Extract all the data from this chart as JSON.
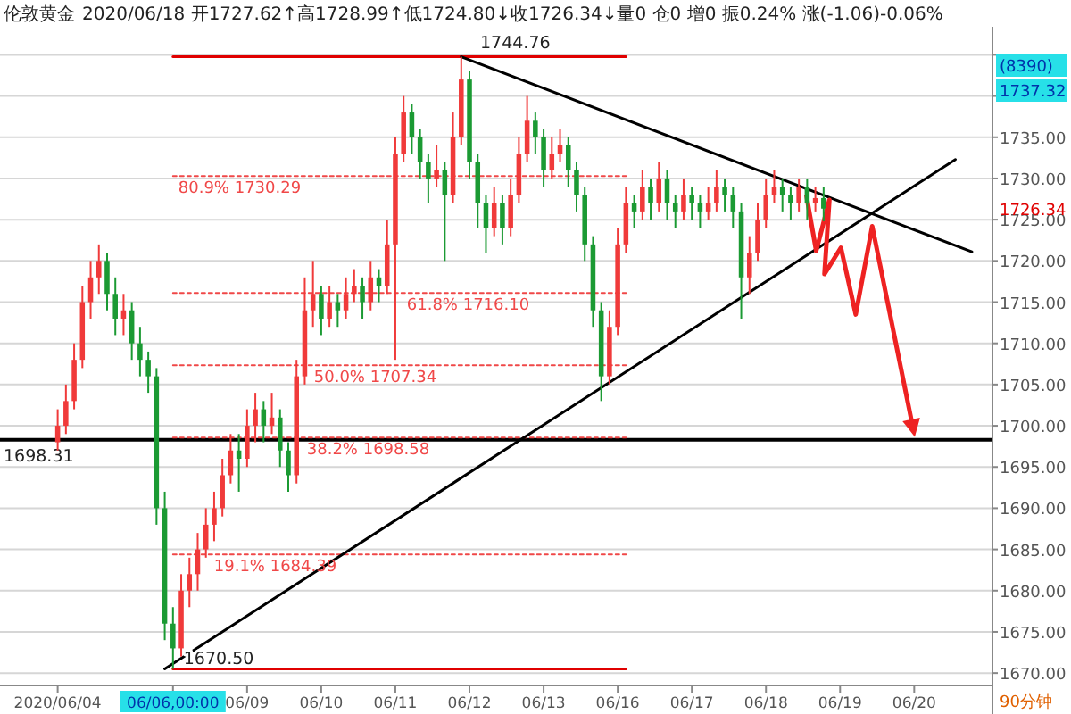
{
  "chart_data": {
    "type": "candlestick",
    "title": "伦敦黄金",
    "subtitle": "2020/06/18 开1727.62↑高1728.99↑低1724.80↓收1726.34↓量0 仓0 增0 振0.24% 涨(-1.06)-0.06%",
    "categories": [
      "2020/06/04",
      null,
      null,
      null,
      null,
      null,
      null,
      null,
      null,
      null,
      null,
      null,
      null,
      null,
      "06/06,00:00",
      null,
      null,
      null,
      null,
      null,
      null,
      null,
      null,
      "06/09",
      null,
      null,
      null,
      null,
      null,
      null,
      null,
      null,
      "06/10",
      null,
      null,
      null,
      null,
      null,
      null,
      null,
      null,
      "06/11",
      null,
      null,
      null,
      null,
      null,
      null,
      null,
      null,
      "06/12",
      null,
      null,
      null,
      null,
      null,
      null,
      null,
      null,
      "06/13",
      null,
      null,
      null,
      null,
      null,
      null,
      null,
      null,
      "06/16",
      null,
      null,
      null,
      null,
      null,
      null,
      null,
      null,
      "06/17",
      null,
      null,
      null,
      null,
      null,
      null,
      null,
      null,
      "06/18",
      null,
      null,
      null,
      null,
      null,
      null,
      null,
      null,
      "06/19",
      null,
      null,
      null,
      null,
      null,
      null,
      null,
      null,
      "06/20",
      null,
      null,
      null,
      null,
      null,
      null,
      null,
      null,
      null
    ],
    "ylim": [
      1668.5,
      1748.4
    ],
    "yticks": [
      {
        "value": 1670,
        "label": "1670.00"
      },
      {
        "value": 1675,
        "label": "1675.00"
      },
      {
        "value": 1680,
        "label": "1680.00"
      },
      {
        "value": 1685,
        "label": "1685.00"
      },
      {
        "value": 1690,
        "label": "1690.00"
      },
      {
        "value": 1695,
        "label": "1695.00"
      },
      {
        "value": 1700,
        "label": "1700.00"
      },
      {
        "value": 1705,
        "label": "1705.00"
      },
      {
        "value": 1710,
        "label": "1710.00"
      },
      {
        "value": 1715,
        "label": "1715.00"
      },
      {
        "value": 1720,
        "label": "1720.00"
      },
      {
        "value": 1725,
        "label": "1725.00"
      },
      {
        "value": 1730,
        "label": "1730.00"
      },
      {
        "value": 1735,
        "label": "1735.00"
      },
      {
        "value": 1740,
        "label": null
      },
      {
        "value": 1745,
        "label": null
      }
    ],
    "grid": "y",
    "ohlc": [
      [
        1698,
        1702,
        1697,
        1700
      ],
      [
        1700,
        1705,
        1699,
        1703
      ],
      [
        1703,
        1710,
        1702,
        1708
      ],
      [
        1708,
        1717,
        1707,
        1715
      ],
      [
        1715,
        1720,
        1713,
        1718
      ],
      [
        1718,
        1722,
        1716,
        1720
      ],
      [
        1720,
        1721,
        1714,
        1716
      ],
      [
        1716,
        1718,
        1711,
        1713
      ],
      [
        1713,
        1716,
        1711,
        1714
      ],
      [
        1714,
        1715,
        1708,
        1710
      ],
      [
        1710,
        1712,
        1706,
        1708
      ],
      [
        1708,
        1709,
        1704,
        1706
      ],
      [
        1706,
        1707,
        1688,
        1690
      ],
      [
        1690,
        1692,
        1674,
        1676
      ],
      [
        1676,
        1678,
        1670.5,
        1673
      ],
      [
        1673,
        1682,
        1672,
        1680
      ],
      [
        1680,
        1684,
        1678,
        1682
      ],
      [
        1682,
        1687,
        1680,
        1685
      ],
      [
        1685,
        1690,
        1684,
        1688
      ],
      [
        1688,
        1692,
        1686,
        1690
      ],
      [
        1690,
        1696,
        1689,
        1694
      ],
      [
        1694,
        1699,
        1693,
        1697
      ],
      [
        1697,
        1699,
        1692,
        1696
      ],
      [
        1696,
        1702,
        1695,
        1700
      ],
      [
        1700,
        1704,
        1698,
        1702
      ],
      [
        1702,
        1703,
        1698,
        1700
      ],
      [
        1700,
        1704,
        1699,
        1701
      ],
      [
        1701,
        1702,
        1695,
        1697
      ],
      [
        1697,
        1698,
        1692,
        1694
      ],
      [
        1694,
        1708,
        1693,
        1706
      ],
      [
        1706,
        1718,
        1705,
        1714
      ],
      [
        1714,
        1720,
        1712,
        1716
      ],
      [
        1716,
        1717,
        1711,
        1713
      ],
      [
        1713,
        1717,
        1712,
        1715
      ],
      [
        1715,
        1716,
        1712,
        1714
      ],
      [
        1714,
        1718,
        1713,
        1716
      ],
      [
        1716,
        1719,
        1715,
        1717
      ],
      [
        1717,
        1718,
        1713,
        1715
      ],
      [
        1715,
        1720,
        1714,
        1718
      ],
      [
        1718,
        1719,
        1715,
        1717
      ],
      [
        1717,
        1725,
        1716,
        1722
      ],
      [
        1722,
        1735,
        1708,
        1733
      ],
      [
        1733,
        1740,
        1732,
        1738
      ],
      [
        1738,
        1739,
        1733,
        1735
      ],
      [
        1735,
        1736,
        1730,
        1732
      ],
      [
        1732,
        1733,
        1727,
        1730
      ],
      [
        1730,
        1734,
        1729,
        1731
      ],
      [
        1731,
        1732,
        1720,
        1728
      ],
      [
        1728,
        1738,
        1727,
        1735
      ],
      [
        1735,
        1744.76,
        1734,
        1742
      ],
      [
        1742,
        1743,
        1730,
        1732
      ],
      [
        1732,
        1733,
        1724,
        1727
      ],
      [
        1727,
        1728,
        1721,
        1724
      ],
      [
        1724,
        1729,
        1723,
        1727
      ],
      [
        1727,
        1728,
        1722,
        1724
      ],
      [
        1724,
        1730,
        1723,
        1728
      ],
      [
        1728,
        1735,
        1727,
        1733
      ],
      [
        1733,
        1740,
        1732,
        1737
      ],
      [
        1737,
        1738,
        1733,
        1735
      ],
      [
        1735,
        1736,
        1729,
        1731
      ],
      [
        1731,
        1735,
        1730,
        1733
      ],
      [
        1733,
        1736,
        1732,
        1734
      ],
      [
        1734,
        1735,
        1729,
        1731
      ],
      [
        1731,
        1732,
        1726,
        1728
      ],
      [
        1728,
        1729,
        1720,
        1722
      ],
      [
        1722,
        1723,
        1712,
        1714
      ],
      [
        1714,
        1715,
        1703,
        1706
      ],
      [
        1706,
        1714,
        1705,
        1712
      ],
      [
        1712,
        1724,
        1711,
        1722
      ],
      [
        1722,
        1729,
        1721,
        1727
      ],
      [
        1727,
        1728,
        1724,
        1726
      ],
      [
        1726,
        1731,
        1725,
        1729
      ],
      [
        1729,
        1730,
        1725,
        1727
      ],
      [
        1727,
        1732,
        1726,
        1730
      ],
      [
        1730,
        1731,
        1725,
        1727
      ],
      [
        1727,
        1728,
        1724,
        1726
      ],
      [
        1726,
        1730,
        1725,
        1728
      ],
      [
        1728,
        1729,
        1725,
        1727
      ],
      [
        1727,
        1728,
        1724,
        1726
      ],
      [
        1726,
        1729,
        1725,
        1727
      ],
      [
        1727,
        1731,
        1726,
        1729
      ],
      [
        1729,
        1730,
        1726,
        1728
      ],
      [
        1728,
        1729,
        1724,
        1726
      ],
      [
        1726,
        1727,
        1713,
        1718
      ],
      [
        1718,
        1723,
        1716,
        1721
      ],
      [
        1721,
        1727,
        1720,
        1725
      ],
      [
        1725,
        1730,
        1724,
        1728
      ],
      [
        1728,
        1731,
        1727,
        1729
      ],
      [
        1729,
        1730,
        1726,
        1728
      ],
      [
        1728,
        1729,
        1725,
        1727
      ],
      [
        1727,
        1730,
        1726,
        1729
      ],
      [
        1729,
        1730,
        1725,
        1727
      ],
      [
        1727,
        1729,
        1726,
        1727.62
      ],
      [
        1727.62,
        1728.99,
        1724.8,
        1726.34
      ],
      null,
      null,
      null,
      null,
      null,
      null,
      null,
      null,
      null,
      null,
      null,
      null,
      null,
      null,
      null,
      null,
      null,
      null,
      null,
      null
    ],
    "series": [
      {
        "type": "line",
        "color": "#e00000",
        "line_style": "solid",
        "values": [
          null,
          null,
          null,
          null,
          null,
          null,
          null,
          null,
          null,
          null,
          null,
          null,
          null,
          null,
          1744.76,
          null,
          null,
          null,
          null,
          null,
          null,
          null,
          null,
          null,
          null,
          null,
          null,
          null,
          null,
          null,
          null,
          null,
          null,
          null,
          null,
          null,
          null,
          null,
          null,
          null,
          null,
          null,
          null,
          null,
          null,
          null,
          null,
          null,
          null,
          null,
          null,
          null,
          null,
          null,
          null,
          null,
          null,
          null,
          null,
          null,
          null,
          null,
          null,
          null,
          null,
          null,
          null,
          null,
          null,
          1744.76,
          null,
          null,
          null,
          null,
          null,
          null,
          null,
          null,
          null,
          null,
          null,
          null,
          null,
          null,
          null,
          null,
          null,
          null,
          null,
          null,
          null,
          null,
          null,
          null,
          null,
          null,
          null,
          null,
          null,
          null,
          null,
          null,
          null,
          null,
          null,
          null,
          null,
          null,
          null,
          null,
          null,
          null,
          null,
          null
        ]
      },
      {
        "type": "line",
        "color": "#e00000",
        "line_style": "solid",
        "values": [
          null,
          null,
          null,
          null,
          null,
          null,
          null,
          null,
          null,
          null,
          null,
          null,
          null,
          null,
          1670.5,
          null,
          null,
          null,
          null,
          null,
          null,
          null,
          null,
          null,
          null,
          null,
          null,
          null,
          null,
          null,
          null,
          null,
          null,
          null,
          null,
          null,
          null,
          null,
          null,
          null,
          null,
          null,
          null,
          null,
          null,
          null,
          null,
          null,
          null,
          null,
          null,
          null,
          null,
          null,
          null,
          null,
          null,
          null,
          null,
          null,
          null,
          null,
          null,
          null,
          null,
          null,
          null,
          null,
          null,
          1670.5,
          null,
          null,
          null,
          null,
          null,
          null,
          null,
          null,
          null,
          null,
          null,
          null,
          null,
          null,
          null,
          null,
          null,
          null,
          null,
          null,
          null,
          null,
          null,
          null,
          null,
          null,
          null,
          null,
          null,
          null,
          null,
          null,
          null,
          null,
          null,
          null,
          null,
          null,
          null,
          null,
          null,
          null,
          null,
          null
        ]
      },
      {
        "type": "line",
        "name": "80.9% 1730.29",
        "color": "#f04848",
        "line_style": "dotted",
        "values": [
          null,
          null,
          null,
          null,
          null,
          null,
          null,
          null,
          null,
          null,
          null,
          null,
          null,
          null,
          1730.29,
          null,
          null,
          null,
          null,
          null,
          null,
          null,
          null,
          null,
          null,
          null,
          null,
          null,
          null,
          null,
          null,
          null,
          null,
          null,
          null,
          null,
          null,
          null,
          null,
          null,
          null,
          null,
          null,
          null,
          null,
          null,
          null,
          null,
          null,
          null,
          null,
          null,
          null,
          null,
          null,
          null,
          null,
          null,
          null,
          null,
          null,
          null,
          null,
          null,
          null,
          null,
          null,
          null,
          null,
          1730.29,
          null,
          null,
          null,
          null,
          null,
          null,
          null,
          null,
          null,
          null,
          null,
          null,
          null,
          null,
          null,
          null,
          null,
          null,
          null,
          null,
          null,
          null,
          null,
          null,
          null,
          null,
          null,
          null,
          null,
          null,
          null,
          null,
          null,
          null,
          null,
          null,
          null,
          null,
          null,
          null,
          null,
          null,
          null,
          null
        ]
      },
      {
        "type": "line",
        "name": "61.8% 1716.10",
        "color": "#f04848",
        "line_style": "dotted",
        "values": [
          null,
          null,
          null,
          null,
          null,
          null,
          null,
          null,
          null,
          null,
          null,
          null,
          null,
          null,
          1716.1,
          null,
          null,
          null,
          null,
          null,
          null,
          null,
          null,
          null,
          null,
          null,
          null,
          null,
          null,
          null,
          null,
          null,
          null,
          null,
          null,
          null,
          null,
          null,
          null,
          null,
          null,
          null,
          null,
          null,
          null,
          null,
          null,
          null,
          null,
          null,
          null,
          null,
          null,
          null,
          null,
          null,
          null,
          null,
          null,
          null,
          null,
          null,
          null,
          null,
          null,
          null,
          null,
          null,
          null,
          1716.1,
          null,
          null,
          null,
          null,
          null,
          null,
          null,
          null,
          null,
          null,
          null,
          null,
          null,
          null,
          null,
          null,
          null,
          null,
          null,
          null,
          null,
          null,
          null,
          null,
          null,
          null,
          null,
          null,
          null,
          null,
          null,
          null,
          null,
          null,
          null,
          null,
          null,
          null,
          null,
          null,
          null,
          null,
          null,
          null
        ]
      },
      {
        "type": "line",
        "name": "50.0% 1707.34",
        "color": "#f04848",
        "line_style": "dotted",
        "values": [
          null,
          null,
          null,
          null,
          null,
          null,
          null,
          null,
          null,
          null,
          null,
          null,
          null,
          null,
          1707.34,
          null,
          null,
          null,
          null,
          null,
          null,
          null,
          null,
          null,
          null,
          null,
          null,
          null,
          null,
          null,
          null,
          null,
          null,
          null,
          null,
          null,
          null,
          null,
          null,
          null,
          null,
          null,
          null,
          null,
          null,
          null,
          null,
          null,
          null,
          null,
          null,
          null,
          null,
          null,
          null,
          null,
          null,
          null,
          null,
          null,
          null,
          null,
          null,
          null,
          null,
          null,
          null,
          null,
          null,
          1707.34,
          null,
          null,
          null,
          null,
          null,
          null,
          null,
          null,
          null,
          null,
          null,
          null,
          null,
          null,
          null,
          null,
          null,
          null,
          null,
          null,
          null,
          null,
          null,
          null,
          null,
          null,
          null,
          null,
          null,
          null,
          null,
          null,
          null,
          null,
          null,
          null,
          null,
          null,
          null,
          null,
          null,
          null,
          null,
          null
        ]
      },
      {
        "type": "line",
        "name": "38.2% 1698.58",
        "color": "#f04848",
        "line_style": "dotted",
        "values": [
          null,
          null,
          null,
          null,
          null,
          null,
          null,
          null,
          null,
          null,
          null,
          null,
          null,
          null,
          1698.58,
          null,
          null,
          null,
          null,
          null,
          null,
          null,
          null,
          null,
          null,
          null,
          null,
          null,
          null,
          null,
          null,
          null,
          null,
          null,
          null,
          null,
          null,
          null,
          null,
          null,
          null,
          null,
          null,
          null,
          null,
          null,
          null,
          null,
          null,
          null,
          null,
          null,
          null,
          null,
          null,
          null,
          null,
          null,
          null,
          null,
          null,
          null,
          null,
          null,
          null,
          null,
          null,
          null,
          null,
          1698.58,
          null,
          null,
          null,
          null,
          null,
          null,
          null,
          null,
          null,
          null,
          null,
          null,
          null,
          null,
          null,
          null,
          null,
          null,
          null,
          null,
          null,
          null,
          null,
          null,
          null,
          null,
          null,
          null,
          null,
          null,
          null,
          null,
          null,
          null,
          null,
          null,
          null,
          null,
          null,
          null,
          null,
          null,
          null,
          null
        ]
      },
      {
        "type": "line",
        "name": "19.1% 1684.39",
        "color": "#f04848",
        "line_style": "dotted",
        "values": [
          null,
          null,
          null,
          null,
          null,
          null,
          null,
          null,
          null,
          null,
          null,
          null,
          null,
          null,
          1684.39,
          null,
          null,
          null,
          null,
          null,
          null,
          null,
          null,
          null,
          null,
          null,
          null,
          null,
          null,
          null,
          null,
          null,
          null,
          null,
          null,
          null,
          null,
          null,
          null,
          null,
          null,
          null,
          null,
          null,
          null,
          null,
          null,
          null,
          null,
          null,
          null,
          null,
          null,
          null,
          null,
          null,
          null,
          null,
          null,
          null,
          null,
          null,
          null,
          null,
          null,
          null,
          null,
          null,
          null,
          1684.39,
          null,
          null,
          null,
          null,
          null,
          null,
          null,
          null,
          null,
          null,
          null,
          null,
          null,
          null,
          null,
          null,
          null,
          null,
          null,
          null,
          null,
          null,
          null,
          null,
          null,
          null,
          null,
          null,
          null,
          null,
          null,
          null,
          null,
          null,
          null,
          null,
          null,
          null,
          null,
          null,
          null,
          null,
          null,
          null
        ]
      },
      {
        "type": "line",
        "color": "#000000",
        "line_style": "solid",
        "values": [
          null,
          null,
          null,
          null,
          null,
          null,
          null,
          null,
          null,
          null,
          null,
          null,
          null,
          null,
          null,
          null,
          null,
          null,
          null,
          null,
          null,
          null,
          null,
          null,
          null,
          null,
          null,
          null,
          null,
          null,
          null,
          null,
          null,
          null,
          null,
          null,
          null,
          null,
          null,
          null,
          null,
          null,
          null,
          null,
          null,
          null,
          null,
          null,
          null,
          1744.76,
          null,
          null,
          null,
          null,
          null,
          null,
          null,
          null,
          null,
          null,
          null,
          null,
          null,
          null,
          null,
          null,
          null,
          null,
          null,
          null,
          null,
          null,
          null,
          null,
          null,
          null,
          null,
          null,
          null,
          null,
          null,
          null,
          null,
          null,
          null,
          null,
          null,
          null,
          null,
          null,
          null,
          null,
          null,
          null,
          null,
          null,
          null,
          null,
          null,
          null,
          null,
          null,
          null,
          null,
          null,
          null,
          null,
          null,
          null,
          null,
          null,
          1721.1,
          null,
          null
        ]
      },
      {
        "type": "line",
        "color": "#000000",
        "line_style": "solid",
        "values": [
          null,
          null,
          null,
          null,
          null,
          null,
          null,
          null,
          null,
          null,
          null,
          null,
          null,
          1670.5,
          null,
          null,
          null,
          null,
          null,
          null,
          null,
          null,
          null,
          null,
          null,
          null,
          null,
          null,
          null,
          null,
          null,
          null,
          null,
          null,
          null,
          null,
          null,
          null,
          null,
          null,
          null,
          null,
          null,
          null,
          null,
          null,
          null,
          null,
          null,
          null,
          null,
          null,
          null,
          null,
          null,
          null,
          null,
          null,
          null,
          null,
          null,
          null,
          null,
          null,
          null,
          null,
          null,
          null,
          null,
          null,
          null,
          null,
          null,
          null,
          null,
          null,
          null,
          null,
          null,
          null,
          null,
          null,
          null,
          null,
          null,
          null,
          null,
          null,
          null,
          null,
          null,
          null,
          null,
          null,
          null,
          null,
          null,
          null,
          null,
          null,
          null,
          null,
          null,
          null,
          null,
          null,
          null,
          null,
          null,
          1732.3,
          null,
          null,
          null,
          null
        ]
      }
    ],
    "ref_lines": [
      {
        "axis": "y",
        "value": 1698.31,
        "label": "1698.31",
        "color": "#000000",
        "line_style": "solid"
      }
    ],
    "annotations": [
      "(8390)",
      "1737.32",
      "1726.34",
      "90分钟",
      {
        "text": "1744.76",
        "x": "06/12",
        "y": 1744.76
      },
      {
        "text": "1670.50",
        "x": "06/06,00:00",
        "y": 1670.5
      }
    ]
  }
}
